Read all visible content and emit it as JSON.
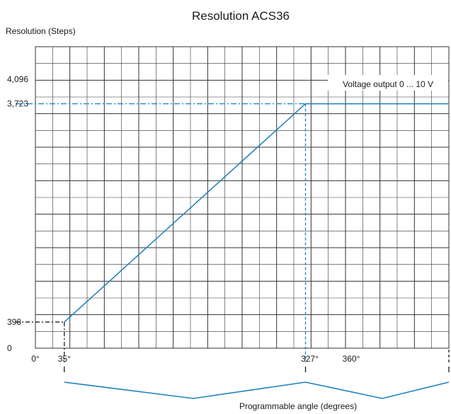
{
  "chart_data": {
    "type": "line",
    "title": "Resolution ACS36",
    "ylabel": "Resolution (Steps)",
    "xlabel": "Programmable angle (degrees)",
    "annotation": "Voltage output 0 ... 10 V",
    "x_ticks": [
      {
        "value": 0,
        "label": "0°"
      },
      {
        "value": 35,
        "label": "35°"
      },
      {
        "value": 327,
        "label": "327°"
      },
      {
        "value": 360,
        "label": "360°"
      }
    ],
    "y_ticks": [
      {
        "value": 0,
        "label": "0"
      },
      {
        "value": 398,
        "label": "398"
      },
      {
        "value": 3723,
        "label": "3,723"
      },
      {
        "value": 4096,
        "label": "4,096"
      }
    ],
    "series": [
      {
        "x": [
          35,
          327,
          480
        ],
        "y": [
          398,
          3723,
          3723
        ]
      }
    ],
    "markers": {
      "start": {
        "x": 35,
        "y": 398
      },
      "end": {
        "x": 327,
        "y": 3723
      }
    },
    "grid": true,
    "colors": {
      "series": "#1a7fbf",
      "grid": "#333333",
      "dashed": "#1a1a1a"
    }
  }
}
